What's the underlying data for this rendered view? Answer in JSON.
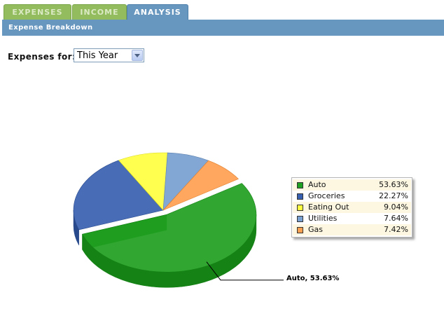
{
  "tabs": [
    {
      "label": "EXPENSES",
      "active": false
    },
    {
      "label": "INCOME",
      "active": false
    },
    {
      "label": "ANALYSIS",
      "active": true
    }
  ],
  "section": {
    "title": "Expense Breakdown"
  },
  "filter": {
    "label": "Expenses for:",
    "selected": "This Year"
  },
  "chart_data": {
    "type": "pie",
    "title": "",
    "slices": [
      {
        "label": "Auto",
        "value": 53.63,
        "display": "53.63%",
        "color": "#20a020",
        "dark": "#158215"
      },
      {
        "label": "Groceries",
        "value": 22.27,
        "display": "22.27%",
        "color": "#3860b0",
        "dark": "#284a8c"
      },
      {
        "label": "Eating Out",
        "value": 9.04,
        "display": "9.04%",
        "color": "#ffff40",
        "dark": "#d8d820"
      },
      {
        "label": "Utilities",
        "value": 7.64,
        "display": "7.64%",
        "color": "#78a0d0",
        "dark": "#5d82b0"
      },
      {
        "label": "Gas",
        "value": 7.42,
        "display": "7.42%",
        "color": "#ffa050",
        "dark": "#e07f2c"
      }
    ],
    "exploded": "Auto",
    "callout": "Auto, 53.63%",
    "legend_position": "right"
  }
}
